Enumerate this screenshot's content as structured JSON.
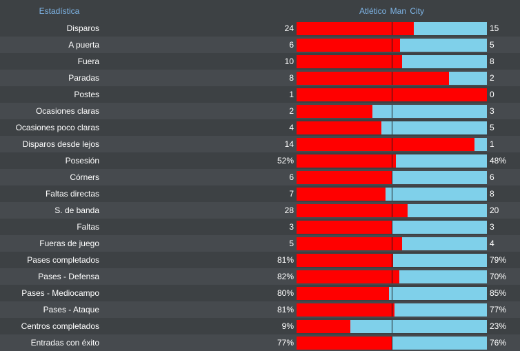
{
  "header": {
    "stat_label": "Estadística",
    "home_team": "Atlético",
    "away_team": "Man City"
  },
  "colors": {
    "home": "#ff0000",
    "away": "#7fd0ea",
    "header_text": "#7fb6e8"
  },
  "stats": [
    {
      "label": "Disparos",
      "home": "24",
      "away": "15",
      "home_share": 0.615
    },
    {
      "label": "A puerta",
      "home": "6",
      "away": "5",
      "home_share": 0.545
    },
    {
      "label": "Fuera",
      "home": "10",
      "away": "8",
      "home_share": 0.556
    },
    {
      "label": "Paradas",
      "home": "8",
      "away": "2",
      "home_share": 0.8
    },
    {
      "label": "Postes",
      "home": "1",
      "away": "0",
      "home_share": 1.0
    },
    {
      "label": "Ocasiones claras",
      "home": "2",
      "away": "3",
      "home_share": 0.4
    },
    {
      "label": "Ocasiones poco claras",
      "home": "4",
      "away": "5",
      "home_share": 0.444
    },
    {
      "label": "Disparos desde lejos",
      "home": "14",
      "away": "1",
      "home_share": 0.933
    },
    {
      "label": "Posesión",
      "home": "52%",
      "away": "48%",
      "home_share": 0.52
    },
    {
      "label": "Córners",
      "home": "6",
      "away": "6",
      "home_share": 0.5
    },
    {
      "label": "Faltas directas",
      "home": "7",
      "away": "8",
      "home_share": 0.467
    },
    {
      "label": "S. de banda",
      "home": "28",
      "away": "20",
      "home_share": 0.583
    },
    {
      "label": "Faltas",
      "home": "3",
      "away": "3",
      "home_share": 0.5
    },
    {
      "label": "Fueras de juego",
      "home": "5",
      "away": "4",
      "home_share": 0.556
    },
    {
      "label": "Pases completados",
      "home": "81%",
      "away": "79%",
      "home_share": 0.506
    },
    {
      "label": "Pases - Defensa",
      "home": "82%",
      "away": "70%",
      "home_share": 0.539
    },
    {
      "label": "Pases - Mediocampo",
      "home": "80%",
      "away": "85%",
      "home_share": 0.485
    },
    {
      "label": "Pases - Ataque",
      "home": "81%",
      "away": "77%",
      "home_share": 0.513
    },
    {
      "label": "Centros completados",
      "home": "9%",
      "away": "23%",
      "home_share": 0.281
    },
    {
      "label": "Entradas con éxito",
      "home": "77%",
      "away": "76%",
      "home_share": 0.503
    }
  ]
}
